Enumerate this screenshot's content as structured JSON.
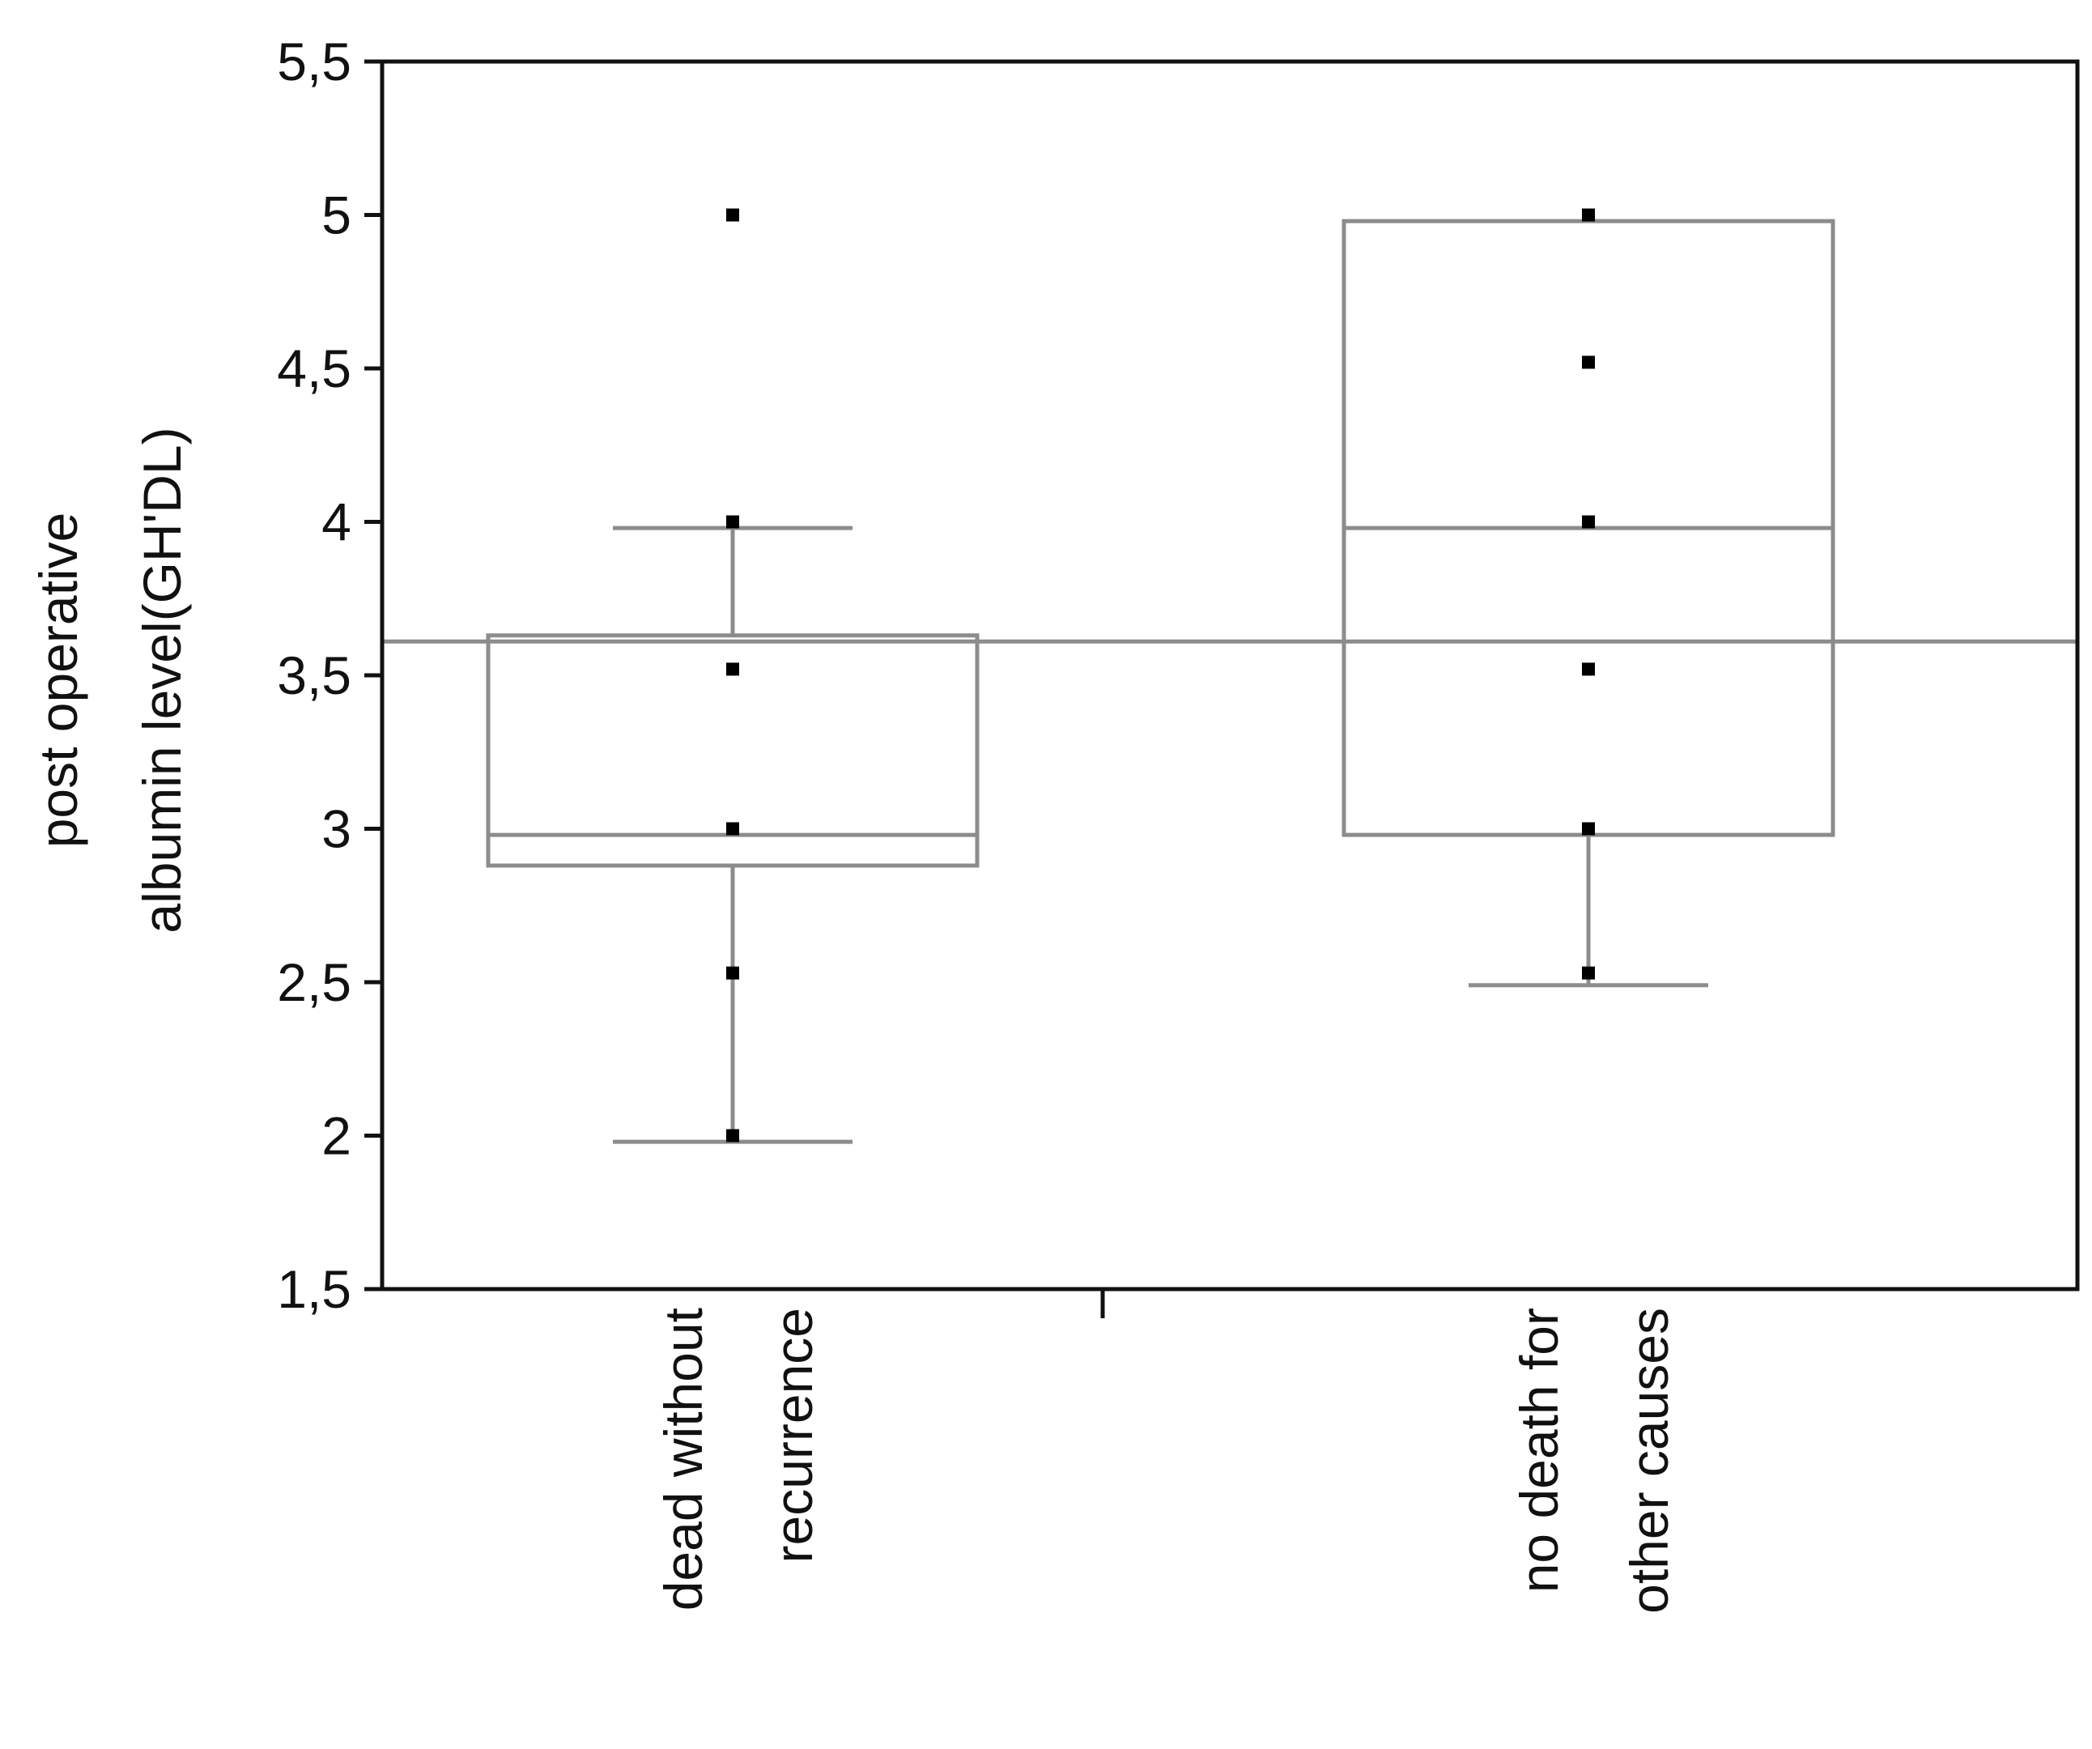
{
  "chart_data": {
    "type": "box",
    "ylabel_lines": [
      "post operative",
      "albumin level(GH'DL)"
    ],
    "xlabel": "",
    "ylim": [
      1.5,
      5.5
    ],
    "yticks": [
      1.5,
      2,
      2.5,
      3,
      3.5,
      4,
      4.5,
      5,
      5.5
    ],
    "ytick_labels": [
      "1,5",
      "2",
      "2,5",
      "3",
      "3,5",
      "4",
      "4,5",
      "5",
      "5,5"
    ],
    "grand_mean_line": 3.61,
    "categories": [
      {
        "label_lines": [
          "dead without",
          "recurrence"
        ],
        "whisker_low": 1.98,
        "q1": 2.88,
        "median": 2.98,
        "q3": 3.63,
        "whisker_high": 3.98,
        "points": [
          2.0,
          2.53,
          3.0,
          3.52,
          4.0,
          5.0
        ]
      },
      {
        "label_lines": [
          "no death for",
          "other causes"
        ],
        "whisker_low": 2.49,
        "q1": 2.98,
        "median": 3.98,
        "q3": 4.98,
        "whisker_high": 4.98,
        "points": [
          2.53,
          3.0,
          3.52,
          4.0,
          4.52,
          5.0
        ]
      }
    ],
    "colors": {
      "box": "#8c8c8c",
      "frame": "#111111",
      "points": "#000000",
      "text": "#111111"
    }
  }
}
